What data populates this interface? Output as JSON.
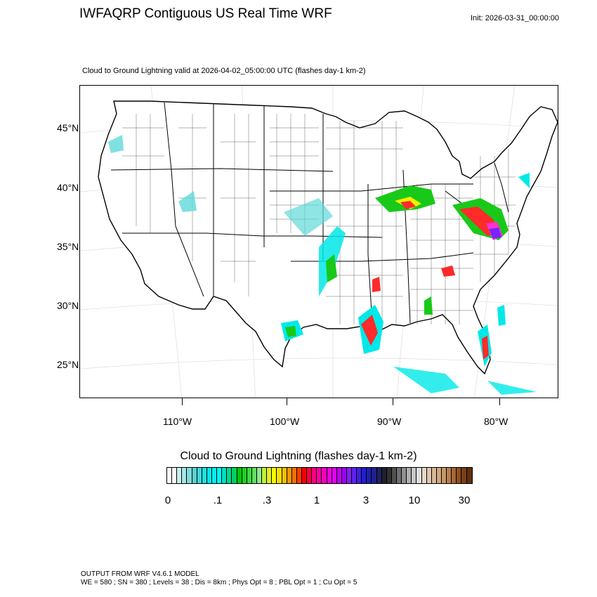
{
  "header": {
    "title": "IWFAQRP Contiguous US Real Time WRF",
    "init": "Init: 2026-03-31_00:00:00"
  },
  "plot": {
    "subtitle": "Cloud to Ground Lightning valid at 2026-04-02_05:00:00 UTC   (flashes day-1 km-2)"
  },
  "map": {
    "lat_labels": [
      "45°N",
      "40°N",
      "35°N",
      "30°N",
      "25°N"
    ],
    "lon_labels": [
      "110°W",
      "100°W",
      "90°W",
      "80°W"
    ],
    "colors": {
      "low": "#5fd9d9",
      "cyan": "#00e8e8",
      "green": "#19c919",
      "yellow": "#f2f200",
      "red": "#ff2a2a",
      "magenta": "#ff33cc",
      "purple": "#7a22ff"
    }
  },
  "colorbar": {
    "title": "Cloud to Ground Lightning  (flashes day-1 km-2)",
    "tick_labels": [
      "0",
      ".1",
      ".3",
      "1",
      "3",
      "10",
      "30"
    ],
    "colors": [
      "#ffffff",
      "#ffffff",
      "#c8f0f0",
      "#a8e6e6",
      "#80dcdc",
      "#5fd0d0",
      "#40d8d8",
      "#20e0e0",
      "#00e8e8",
      "#00f0f0",
      "#00f8f8",
      "#00e0c0",
      "#00d890",
      "#00d060",
      "#00c800",
      "#20d020",
      "#40d840",
      "#60e060",
      "#90e890",
      "#c0f040",
      "#e0f020",
      "#f8f800",
      "#f8e000",
      "#f8c000",
      "#f89800",
      "#f87000",
      "#f84000",
      "#f80000",
      "#f80040",
      "#f80080",
      "#f800a0",
      "#f800c0",
      "#f000e0",
      "#e000f0",
      "#c000f0",
      "#a000f0",
      "#8020f0",
      "#6020f0",
      "#4020e0",
      "#2020d0",
      "#2020b0",
      "#202090",
      "#202060",
      "#202030",
      "#303030",
      "#505050",
      "#707070",
      "#909090",
      "#b0b0b0",
      "#c8c8c8",
      "#e0e0e0",
      "#e8d8c8",
      "#e0c8b0",
      "#d8b898",
      "#d0a880",
      "#c89868",
      "#b88050",
      "#a86838",
      "#905020",
      "#784018",
      "#603010"
    ]
  },
  "footer": {
    "line1": "OUTPUT FROM WRF V4.6.1 MODEL",
    "line2": "WE = 580 ; SN = 380 ; Levels = 38 ; Dis = 8km ; Phys Opt = 8 ; PBL Opt = 1 ; Cu Opt = 5"
  }
}
